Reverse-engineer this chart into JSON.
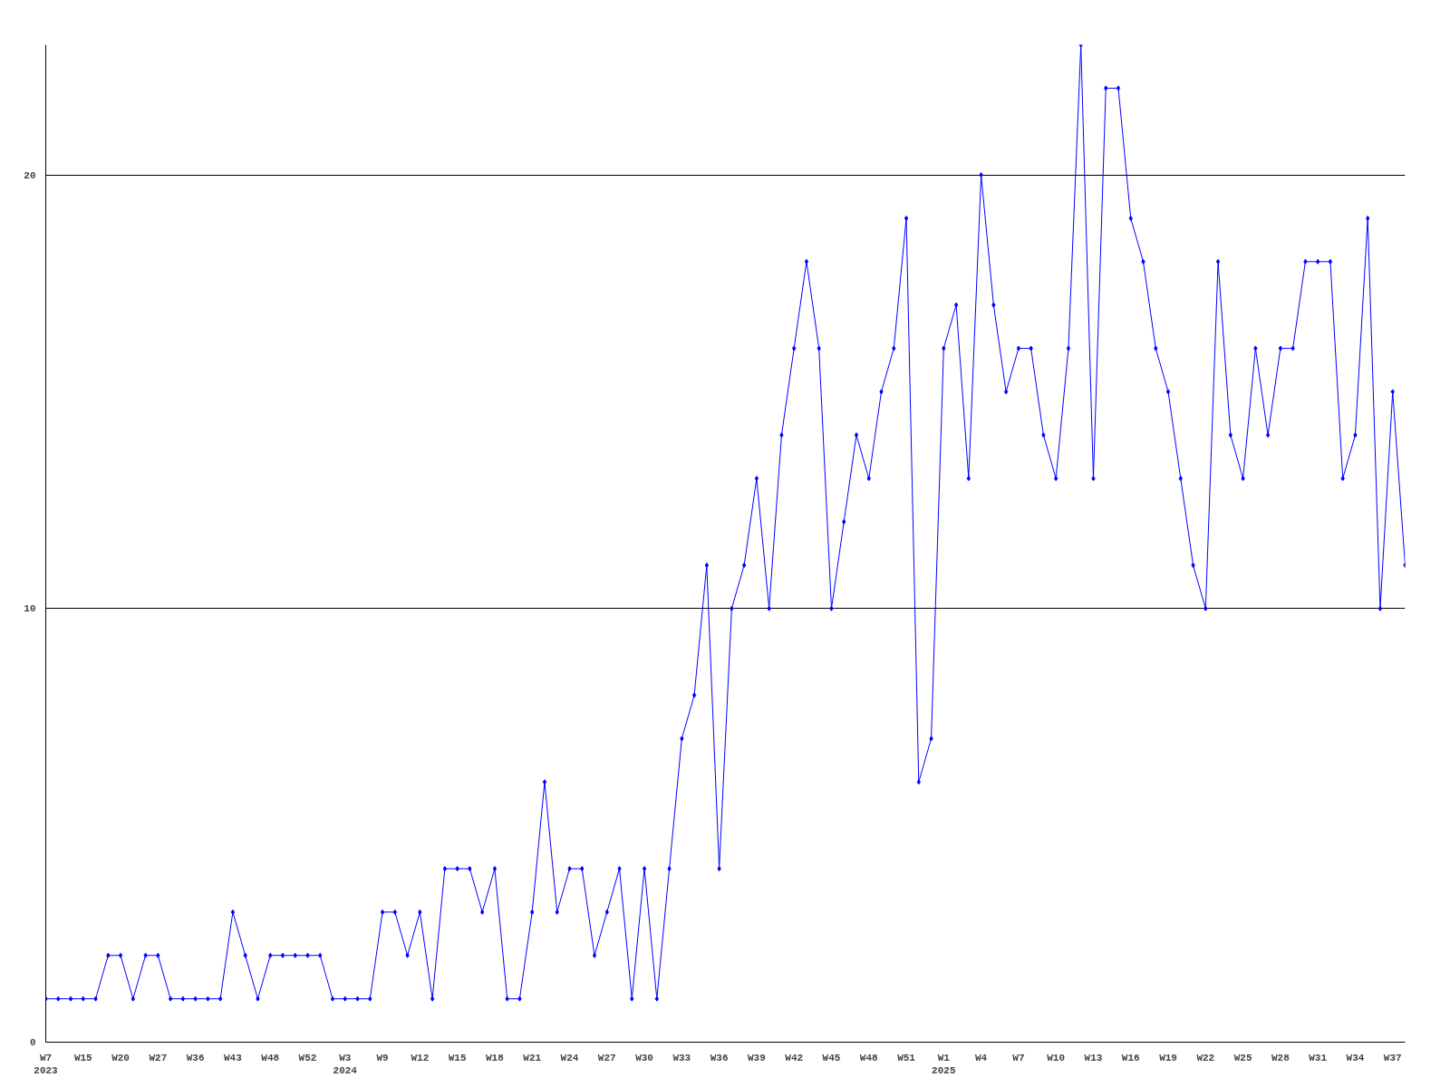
{
  "chart_data": {
    "type": "line",
    "categories": [
      "W7\n2023",
      null,
      null,
      "W15",
      null,
      null,
      "W20",
      null,
      null,
      "W27",
      null,
      null,
      "W36",
      null,
      null,
      "W43",
      null,
      null,
      "W48",
      null,
      null,
      "W52",
      null,
      null,
      "W3\n2024",
      null,
      null,
      "W9",
      null,
      null,
      "W12",
      null,
      null,
      "W15",
      null,
      null,
      "W18",
      null,
      null,
      "W21",
      null,
      null,
      "W24",
      null,
      null,
      "W27",
      null,
      null,
      "W30",
      null,
      null,
      "W33",
      null,
      null,
      "W36",
      null,
      null,
      "W39",
      null,
      null,
      "W42",
      null,
      null,
      "W45",
      null,
      null,
      "W48",
      null,
      null,
      "W51",
      null,
      null,
      "W1\n2025",
      null,
      null,
      "W4",
      null,
      null,
      "W7",
      null,
      null,
      "W10",
      null,
      null,
      "W13",
      null,
      null,
      "W16",
      null,
      null,
      "W19",
      null,
      null,
      "W22",
      null,
      null,
      "W25",
      null,
      null,
      "W28",
      null,
      null,
      "W31",
      null,
      null,
      "W34",
      null,
      null,
      "W37",
      null
    ],
    "series": [
      {
        "color": "#0000ff",
        "values": [
          1,
          1,
          1,
          1,
          1,
          2,
          2,
          1,
          2,
          2,
          1,
          1,
          1,
          1,
          1,
          3,
          2,
          1,
          2,
          2,
          2,
          2,
          2,
          1,
          1,
          1,
          1,
          3,
          3,
          2,
          3,
          1,
          4,
          4,
          4,
          3,
          4,
          1,
          1,
          3,
          6,
          3,
          4,
          4,
          2,
          3,
          4,
          1,
          4,
          1,
          4,
          7,
          8,
          11,
          4,
          10,
          11,
          13,
          10,
          14,
          16,
          18,
          16,
          10,
          12,
          14,
          13,
          15,
          16,
          19,
          6,
          7,
          16,
          17,
          13,
          20,
          17,
          15,
          16,
          16,
          14,
          13,
          16,
          23,
          13,
          22,
          22,
          19,
          18,
          16,
          15,
          13,
          11,
          10,
          18,
          14,
          13,
          16,
          14,
          16,
          16,
          18,
          18,
          18,
          13,
          14,
          19,
          10,
          15,
          11
        ]
      }
    ],
    "ylim": [
      0,
      23
    ],
    "yticks": [
      0,
      10,
      20
    ],
    "grid": "y",
    "marker": "diamond",
    "line_style": "solid"
  }
}
